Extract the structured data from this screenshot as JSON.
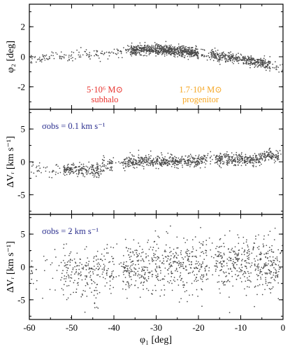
{
  "chart_data": [
    {
      "type": "scatter",
      "xlabel": "",
      "ylabel": "φ₂ [deg]",
      "xlim": [
        -60,
        0
      ],
      "ylim": [
        -3.5,
        3.5
      ],
      "yticks": [
        -2,
        0,
        2
      ],
      "xticks": [
        -60,
        -50,
        -40,
        -30,
        -20,
        -10,
        0
      ],
      "grid": false,
      "point_color": "#4a4a4a",
      "track": [
        {
          "x": -60,
          "y": -0.2
        },
        {
          "x": -55,
          "y": -0.05
        },
        {
          "x": -50,
          "y": 0.05
        },
        {
          "x": -45,
          "y": 0.15
        },
        {
          "x": -40,
          "y": 0.3
        },
        {
          "x": -35,
          "y": 0.45
        },
        {
          "x": -30,
          "y": 0.5
        },
        {
          "x": -25,
          "y": 0.4
        },
        {
          "x": -20,
          "y": 0.25
        },
        {
          "x": -15,
          "y": 0.05
        },
        {
          "x": -10,
          "y": -0.15
        },
        {
          "x": -5,
          "y": -0.4
        },
        {
          "x": 0,
          "y": -0.75
        }
      ],
      "annotations": [
        {
          "text": "5·10⁶ M⊙",
          "x": -37,
          "y": -1.55,
          "color": "#e8332e"
        },
        {
          "text": "subhalo",
          "x": -37,
          "y": -2.3,
          "color": "#e8332e"
        },
        {
          "text": "1.7·10⁴ M⊙",
          "x": -19.5,
          "y": -1.55,
          "color": "#f5a623"
        },
        {
          "text": "progenitor",
          "x": -19.5,
          "y": -2.3,
          "color": "#f5a623"
        }
      ]
    },
    {
      "type": "scatter",
      "xlabel": "",
      "ylabel": "ΔVᵣ [km s⁻¹]",
      "xlim": [
        -60,
        0
      ],
      "ylim": [
        -8,
        8
      ],
      "yticks": [
        -5,
        0,
        5
      ],
      "xticks": [
        -60,
        -50,
        -40,
        -30,
        -20,
        -10,
        0
      ],
      "grid": false,
      "point_color": "#4a4a4a",
      "sigma_obs_km_s": 0.1,
      "annotations": [
        {
          "text": "σobs = 0.1 km s⁻¹",
          "color": "#2b2f8f"
        }
      ]
    },
    {
      "type": "scatter",
      "xlabel": "φ₁ [deg]",
      "ylabel": "ΔVᵣ [km s⁻¹]",
      "xlim": [
        -60,
        0
      ],
      "ylim": [
        -8,
        8
      ],
      "yticks": [
        -5,
        0,
        5
      ],
      "xticks": [
        -60,
        -50,
        -40,
        -30,
        -20,
        -10,
        0
      ],
      "grid": false,
      "point_color": "#4a4a4a",
      "sigma_obs_km_s": 2,
      "annotations": [
        {
          "text": "σobs = 2 km s⁻¹",
          "color": "#2b2f8f"
        }
      ]
    }
  ]
}
